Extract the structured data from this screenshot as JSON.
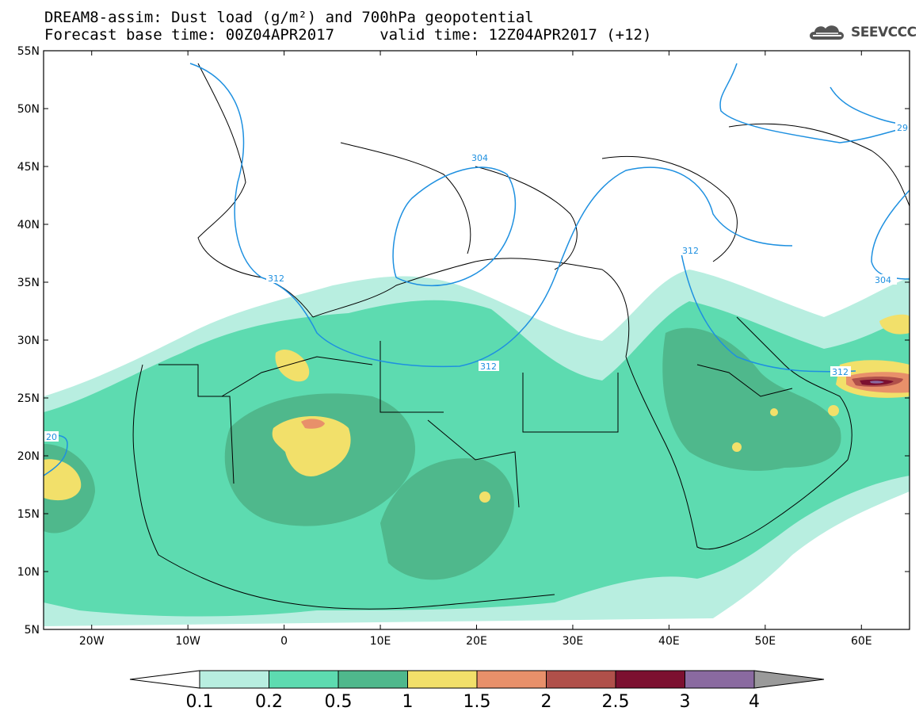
{
  "title": {
    "line1": "DREAM8-assim: Dust load (g/m²) and 700hPa geopotential",
    "line2": "Forecast base time: 00Z04APR2017     valid time: 12Z04APR2017 (+12)"
  },
  "logo": {
    "text": "SEEVCCC",
    "icon": "cloud-logo-icon"
  },
  "map": {
    "lon_range": [
      -25,
      65
    ],
    "lat_range": [
      5,
      55
    ],
    "lat_ticks": [
      "5N",
      "10N",
      "15N",
      "20N",
      "25N",
      "30N",
      "35N",
      "40N",
      "45N",
      "50N",
      "55N"
    ],
    "lon_ticks": [
      "20W",
      "10W",
      "0",
      "10E",
      "20E",
      "30E",
      "40E",
      "50E",
      "60E"
    ],
    "contour_labels": [
      "304",
      "312",
      "312",
      "312",
      "312",
      "304",
      "20",
      "29"
    ],
    "contour_color": "#1e90e0"
  },
  "colorbar": {
    "levels": [
      "0.1",
      "0.2",
      "0.5",
      "1",
      "1.5",
      "2",
      "2.5",
      "3",
      "4"
    ],
    "colors": [
      "#b8eee0",
      "#5ddbb0",
      "#4fb88c",
      "#f2e06a",
      "#e8906a",
      "#b0504a",
      "#7c1030",
      "#8a6aa0"
    ],
    "under_color": "#ffffff",
    "over_color": "#9a9a9a"
  }
}
